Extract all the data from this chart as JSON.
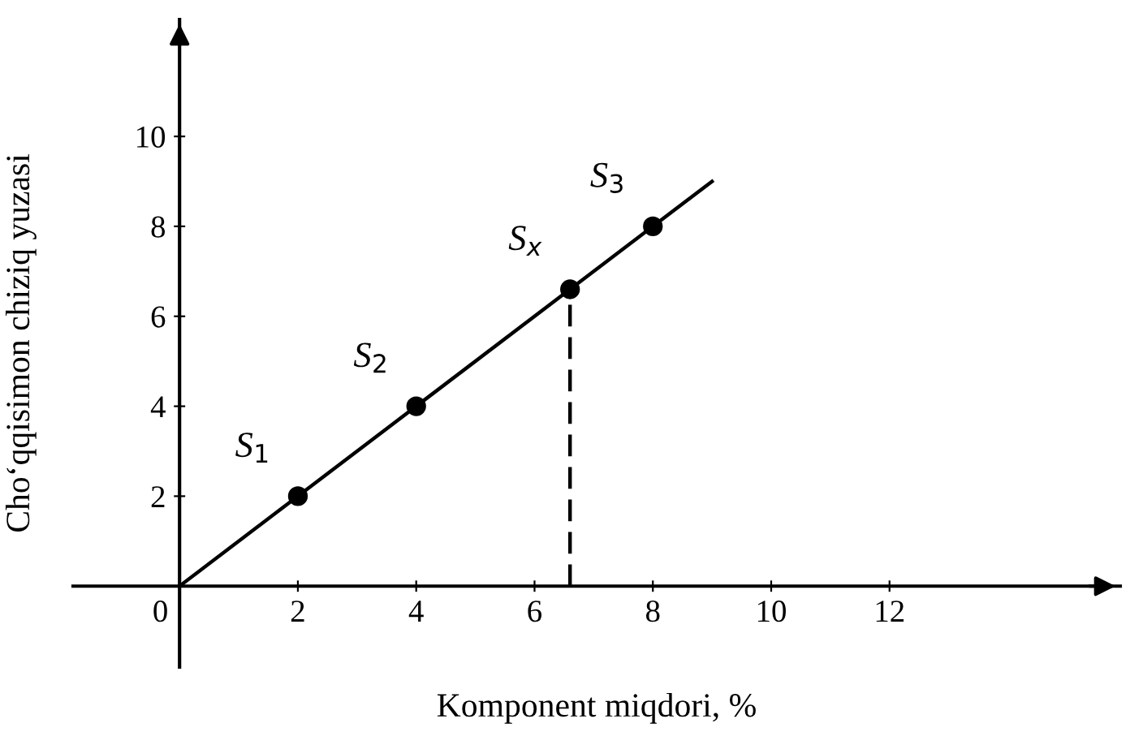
{
  "chart_data": {
    "type": "scatter",
    "xlabel": "Komponent miqdori, %",
    "ylabel": "Cho‘qqisimon chiziq yuzasi",
    "xlim": [
      -1.8,
      15.9
    ],
    "ylim": [
      -1.8,
      12.6
    ],
    "xticks": [
      {
        "value": 0,
        "label": "0"
      },
      2,
      4,
      6,
      8,
      10,
      12
    ],
    "yticks": [
      2,
      4,
      6,
      8,
      10
    ],
    "grid": false,
    "marker": "circle",
    "series": [
      {
        "type": "line",
        "color": "#000000",
        "x": [
          0,
          9
        ],
        "values": [
          0,
          9
        ],
        "marker": "none",
        "line_style": "solid"
      },
      {
        "type": "line",
        "color": "#000000",
        "x": [
          6.6,
          6.6
        ],
        "values": [
          0,
          6.6
        ],
        "marker": "none",
        "line_style": "dashed"
      },
      {
        "color": "#000000",
        "x": [
          2,
          4,
          6.6,
          8
        ],
        "values": [
          2,
          4,
          6.6,
          8
        ]
      }
    ],
    "annotations": [
      {
        "text": "S$_{1}$",
        "x": 2,
        "y": 2
      },
      {
        "text": "S$_{2}$",
        "x": 4,
        "y": 4
      },
      {
        "text": "S$_{x}$",
        "x": 6.6,
        "y": 6.6
      },
      {
        "text": "S$_{3}$",
        "x": 8,
        "y": 8
      }
    ]
  }
}
